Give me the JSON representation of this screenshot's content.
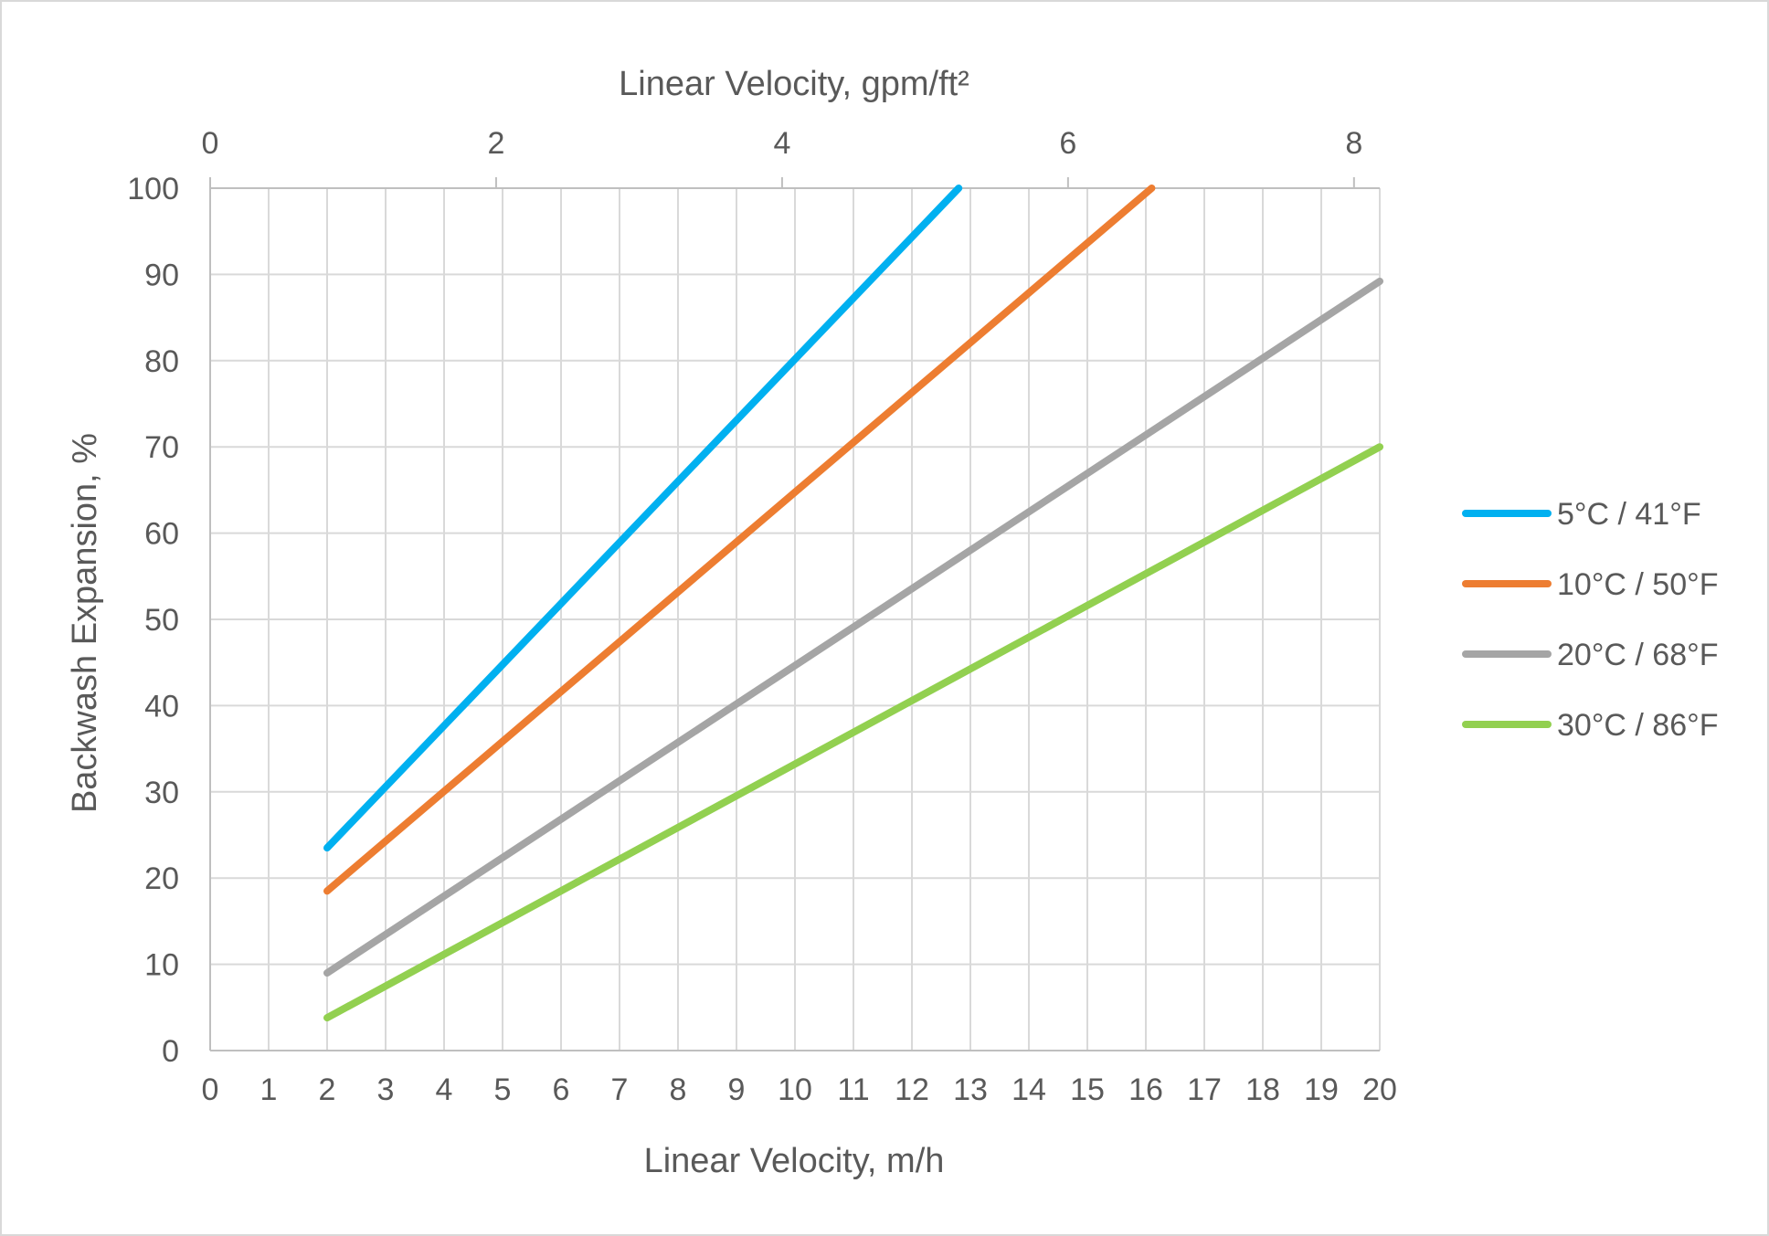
{
  "chart_data": {
    "type": "line",
    "xlabel": "Linear Velocity, m/h",
    "x2label": "Linear Velocity, gpm/ft²",
    "ylabel": "Backwash Expansion, %",
    "xlim": [
      0,
      20
    ],
    "ylim": [
      0,
      100
    ],
    "x2lim": [
      0,
      8.18
    ],
    "x_ticks": [
      0,
      1,
      2,
      3,
      4,
      5,
      6,
      7,
      8,
      9,
      10,
      11,
      12,
      13,
      14,
      15,
      16,
      17,
      18,
      19,
      20
    ],
    "y_ticks": [
      0,
      10,
      20,
      30,
      40,
      50,
      60,
      70,
      80,
      90,
      100
    ],
    "x2_ticks": [
      0,
      2,
      4,
      6,
      8
    ],
    "grid": true,
    "legend_position": "right",
    "series": [
      {
        "name": "5°C / 41°F",
        "color": "#00b0f0",
        "x": [
          2,
          12.8
        ],
        "y": [
          23.5,
          100
        ]
      },
      {
        "name": "10°C / 50°F",
        "color": "#ed7d31",
        "x": [
          2,
          16.1
        ],
        "y": [
          18.5,
          100
        ]
      },
      {
        "name": "20°C / 68°F",
        "color": "#a5a5a5",
        "x": [
          2,
          20
        ],
        "y": [
          9,
          89.2
        ]
      },
      {
        "name": "30°C / 86°F",
        "color": "#92d050",
        "x": [
          2,
          20
        ],
        "y": [
          3.8,
          70
        ]
      }
    ]
  }
}
